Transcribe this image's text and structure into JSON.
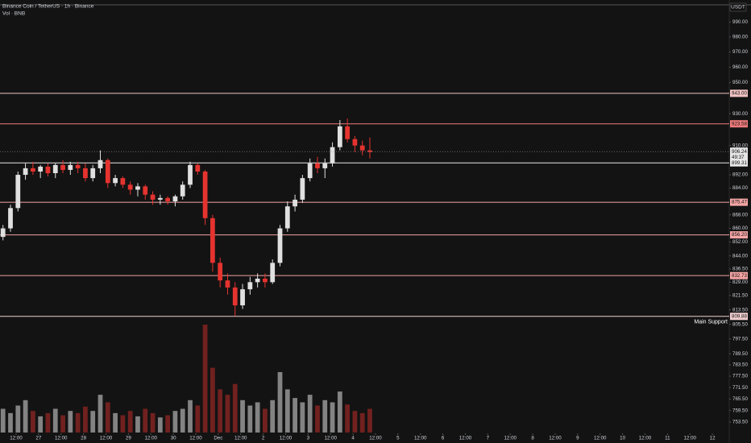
{
  "chart_data": {
    "type": "candlestick",
    "title": "Binance Coin / TetherUS · 1h · Binance",
    "subtitle": "Vol · BNB",
    "currency": "USDT",
    "log_scale": true,
    "ylim": [
      749,
      1005
    ],
    "yticks": [
      {
        "value": 990,
        "label": "990.00"
      },
      {
        "value": 980,
        "label": "980.00"
      },
      {
        "value": 970,
        "label": "970.00"
      },
      {
        "value": 960,
        "label": "960.00"
      },
      {
        "value": 950,
        "label": "950.00"
      },
      {
        "value": 930,
        "label": "930.00"
      },
      {
        "value": 910,
        "label": "910.00"
      },
      {
        "value": 892,
        "label": "892.00"
      },
      {
        "value": 884,
        "label": "884.00"
      },
      {
        "value": 868,
        "label": "868.00"
      },
      {
        "value": 860,
        "label": "860.00"
      },
      {
        "value": 852,
        "label": "852.00"
      },
      {
        "value": 844,
        "label": "844.00"
      },
      {
        "value": 836.5,
        "label": "836.50"
      },
      {
        "value": 829,
        "label": "829.00"
      },
      {
        "value": 821.5,
        "label": "821.50"
      },
      {
        "value": 813.5,
        "label": "813.50"
      },
      {
        "value": 805.5,
        "label": "805.50"
      },
      {
        "value": 797.5,
        "label": "797.50"
      },
      {
        "value": 789.5,
        "label": "789.50"
      },
      {
        "value": 783.5,
        "label": "783.50"
      },
      {
        "value": 777.5,
        "label": "777.50"
      },
      {
        "value": 771.5,
        "label": "771.50"
      },
      {
        "value": 765.5,
        "label": "765.50"
      },
      {
        "value": 759.5,
        "label": "759.50"
      },
      {
        "value": 753.5,
        "label": "753.50"
      }
    ],
    "xlim": [
      -8.6,
      381
    ],
    "xticks": [
      {
        "value": 0,
        "label": "12:00"
      },
      {
        "value": 12,
        "label": "27"
      },
      {
        "value": 24,
        "label": "12:00"
      },
      {
        "value": 36,
        "label": "28"
      },
      {
        "value": 48,
        "label": "12:00"
      },
      {
        "value": 60,
        "label": "29"
      },
      {
        "value": 72,
        "label": "12:00"
      },
      {
        "value": 84,
        "label": "30"
      },
      {
        "value": 96,
        "label": "12:00"
      },
      {
        "value": 108,
        "label": "Dec"
      },
      {
        "value": 120,
        "label": "12:00"
      },
      {
        "value": 132,
        "label": "2"
      },
      {
        "value": 144,
        "label": "12:00"
      },
      {
        "value": 156,
        "label": "3"
      },
      {
        "value": 168,
        "label": "12:00"
      },
      {
        "value": 180,
        "label": "4"
      },
      {
        "value": 192,
        "label": "12:00"
      },
      {
        "value": 204,
        "label": "5"
      },
      {
        "value": 216,
        "label": "12:00"
      },
      {
        "value": 228,
        "label": "6"
      },
      {
        "value": 240,
        "label": "12:00"
      },
      {
        "value": 252,
        "label": "7"
      },
      {
        "value": 264,
        "label": "12:00"
      },
      {
        "value": 276,
        "label": "8"
      },
      {
        "value": 288,
        "label": "12:00"
      },
      {
        "value": 300,
        "label": "9"
      },
      {
        "value": 312,
        "label": "12:00"
      },
      {
        "value": 324,
        "label": "10"
      },
      {
        "value": 336,
        "label": "12:00"
      },
      {
        "value": 348,
        "label": "11"
      },
      {
        "value": 360,
        "label": "12:00"
      },
      {
        "value": 372,
        "label": "12"
      }
    ],
    "x": [
      -7,
      -3,
      1,
      5,
      9,
      13,
      17,
      21,
      25,
      29,
      33,
      37,
      41,
      45,
      49,
      53,
      57,
      61,
      65,
      69,
      73,
      77,
      81,
      85,
      89,
      93,
      97,
      101,
      105,
      109,
      113,
      117,
      121,
      125,
      129,
      133,
      137,
      141,
      145,
      149,
      153,
      157,
      161,
      165,
      169,
      173,
      177,
      181,
      185,
      189
    ],
    "open": [
      855,
      860,
      872,
      892,
      896,
      894,
      897,
      893,
      898,
      895,
      898,
      896,
      890,
      896,
      901,
      887,
      890,
      886,
      883,
      885,
      880,
      877,
      878,
      876,
      879,
      886,
      898,
      894,
      866,
      840,
      830,
      826,
      816,
      825,
      829,
      831,
      829,
      840,
      860,
      873,
      877,
      890,
      899,
      896,
      899,
      909,
      922,
      914,
      910,
      907
    ],
    "high": [
      862,
      874,
      894,
      899,
      900,
      898,
      899,
      899,
      901,
      900,
      900,
      899,
      898,
      907,
      902,
      892,
      891,
      888,
      887,
      886,
      882,
      880,
      879,
      880,
      888,
      900,
      899,
      895,
      868,
      843,
      834,
      829,
      828,
      832,
      834,
      834,
      842,
      862,
      876,
      880,
      892,
      902,
      903,
      902,
      912,
      926,
      927,
      916,
      913,
      915
    ],
    "low": [
      853,
      858,
      870,
      889,
      892,
      890,
      891,
      890,
      893,
      892,
      893,
      888,
      888,
      893,
      884,
      885,
      884,
      880,
      879,
      877,
      874,
      874,
      874,
      873,
      877,
      884,
      892,
      862,
      835,
      826,
      822,
      810,
      814,
      822,
      826,
      826,
      828,
      838,
      858,
      870,
      875,
      888,
      893,
      890,
      897,
      907,
      912,
      906,
      904,
      902
    ],
    "close": [
      860,
      872,
      892,
      896,
      894,
      897,
      893,
      898,
      895,
      898,
      896,
      890,
      896,
      901,
      887,
      890,
      886,
      883,
      885,
      880,
      877,
      878,
      876,
      879,
      886,
      898,
      894,
      866,
      840,
      830,
      826,
      816,
      825,
      829,
      831,
      829,
      840,
      860,
      873,
      877,
      890,
      899,
      896,
      899,
      909,
      922,
      914,
      910,
      907,
      906
    ],
    "volume": [
      22,
      18,
      25,
      30,
      20,
      15,
      18,
      22,
      16,
      20,
      18,
      24,
      20,
      35,
      28,
      18,
      16,
      20,
      15,
      22,
      18,
      14,
      16,
      20,
      22,
      30,
      25,
      100,
      60,
      40,
      35,
      45,
      30,
      25,
      28,
      22,
      30,
      56,
      40,
      32,
      28,
      35,
      25,
      30,
      28,
      38,
      26,
      20,
      18,
      22
    ],
    "up_color": "#e0e0e0",
    "down_color": "#e5332f",
    "levels": [
      {
        "value": 943,
        "label": "943.00",
        "color": "#f2c4c4"
      },
      {
        "value": 923.58,
        "label": "923.58",
        "color": "#f07c7c"
      },
      {
        "value": 899.31,
        "label": "899.31",
        "color": "#e8e8e8"
      },
      {
        "value": 875.47,
        "label": "875.47",
        "color": "#f5a5a5"
      },
      {
        "value": 856.2,
        "label": "856.20",
        "color": "#f5a5a5"
      },
      {
        "value": 832.73,
        "label": "832.73",
        "color": "#f5a5a5"
      },
      {
        "value": 809.88,
        "label": "809.88",
        "color": "#f2d0d0"
      }
    ],
    "annotation": "Main Support",
    "last_price": {
      "value": 906.24,
      "label": "906.24",
      "countdown": "49:37"
    }
  }
}
